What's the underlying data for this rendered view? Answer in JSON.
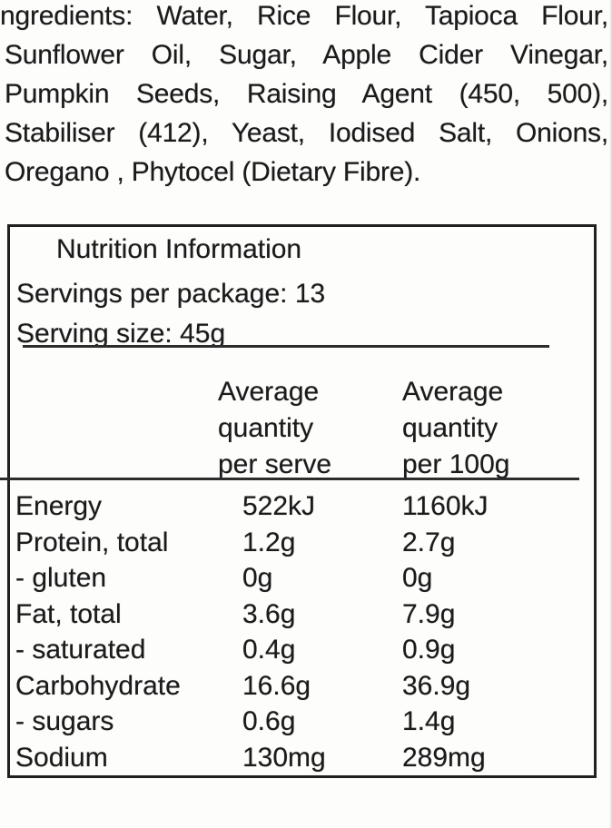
{
  "ingredients": {
    "lines": [
      "ngredients: Water, Rice Flour, Tapioca Flour,",
      "Sunflower Oil, Sugar, Apple Cider Vinegar,",
      "Pumpkin Seeds, Raising Agent (450, 500),",
      "Stabiliser (412), Yeast, Iodised Salt, Onions,",
      "Oregano , Phytocel (Dietary Fibre)."
    ]
  },
  "nutrition_panel": {
    "title": "Nutrition Information",
    "servings_per_package": "Servings per package: 13",
    "serving_size": "Serving size: 45g",
    "columns": {
      "per_serve": [
        "Average",
        "quantity",
        "per serve"
      ],
      "per_100g": [
        "Average",
        "quantity",
        "per 100g"
      ]
    },
    "rows": [
      {
        "label": "Energy",
        "per_serve": "522kJ",
        "per_100g": "1160kJ"
      },
      {
        "label": "Protein, total",
        "per_serve": "1.2g",
        "per_100g": "2.7g"
      },
      {
        "label": "- gluten",
        "per_serve": "0g",
        "per_100g": "0g"
      },
      {
        "label": "Fat, total",
        "per_serve": "3.6g",
        "per_100g": "7.9g"
      },
      {
        "label": "- saturated",
        "per_serve": "0.4g",
        "per_100g": "0.9g"
      },
      {
        "label": "Carbohydrate",
        "per_serve": "16.6g",
        "per_100g": "36.9g"
      },
      {
        "label": "- sugars",
        "per_serve": "0.6g",
        "per_100g": "1.4g"
      },
      {
        "label": "Sodium",
        "per_serve": "130mg",
        "per_100g": "289mg"
      }
    ]
  },
  "colors": {
    "text": "#1b1b1b",
    "panel_border": "#212121",
    "background": "#fdfdfc"
  }
}
